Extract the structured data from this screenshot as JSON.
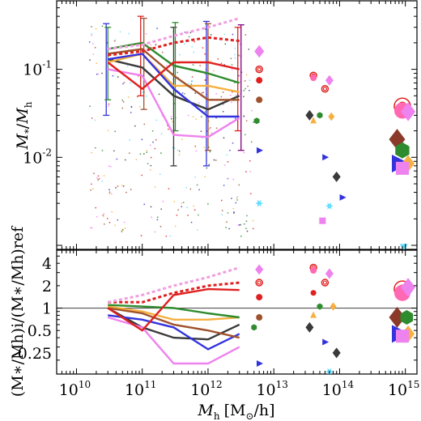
{
  "chart_data": [
    {
      "panel": "top",
      "type": "scatter",
      "ylabel": "M_*/M_h",
      "ylabel_parts": {
        "main": "M",
        "sub1": "*",
        "mid": "/",
        "main2": "M",
        "sub2": "h"
      },
      "xscale": "log",
      "yscale": "log",
      "xlim": [
        5000000000.0,
        1500000000000000.0
      ],
      "ylim": [
        0.0009,
        0.6
      ],
      "y_ticks": [
        {
          "value": 0.1,
          "base": "10",
          "exp": "-1"
        },
        {
          "value": 0.01,
          "base": "10",
          "exp": "-2"
        }
      ],
      "lines": [
        {
          "color": "#3a3a3a",
          "x": [
            30000000000.0,
            100000000000.0,
            300000000000.0,
            1000000000000.0,
            3000000000000.0
          ],
          "y": [
            0.13,
            0.105,
            0.05,
            0.035,
            0.05
          ]
        },
        {
          "color": "#f5b041",
          "x": [
            30000000000.0,
            100000000000.0,
            300000000000.0,
            1000000000000.0,
            3000000000000.0
          ],
          "y": [
            0.12,
            0.15,
            0.065,
            0.065,
            0.055
          ]
        },
        {
          "color": "#3333dd",
          "x": [
            30000000000.0,
            100000000000.0,
            300000000000.0,
            1000000000000.0,
            3000000000000.0
          ],
          "y": [
            0.13,
            0.15,
            0.06,
            0.029,
            0.029
          ]
        },
        {
          "color": "#2e8b2e",
          "x": [
            30000000000.0,
            100000000000.0,
            300000000000.0,
            1000000000000.0,
            3000000000000.0
          ],
          "y": [
            0.17,
            0.2,
            0.11,
            0.09,
            0.07
          ]
        },
        {
          "color": "#a0522d",
          "x": [
            30000000000.0,
            100000000000.0,
            300000000000.0,
            1000000000000.0,
            3000000000000.0
          ],
          "y": [
            0.15,
            0.17,
            0.085,
            0.045,
            0.045
          ]
        },
        {
          "color": "#ee82ee",
          "x": [
            30000000000.0,
            100000000000.0,
            300000000000.0,
            1000000000000.0,
            3000000000000.0
          ],
          "y": [
            0.1,
            0.085,
            0.018,
            0.017,
            0.028
          ]
        },
        {
          "color": "#e02020",
          "x": [
            30000000000.0,
            100000000000.0,
            300000000000.0,
            1000000000000.0,
            3000000000000.0
          ],
          "y": [
            0.12,
            0.06,
            0.12,
            0.12,
            0.1
          ]
        },
        {
          "color": "#e02020",
          "dashed": true,
          "x": [
            30000000000.0,
            100000000000.0,
            300000000000.0,
            1000000000000.0,
            3000000000000.0
          ],
          "y": [
            0.145,
            0.16,
            0.2,
            0.23,
            0.21
          ]
        },
        {
          "color": "#f0a0e0",
          "dashed": true,
          "x": [
            30000000000.0,
            100000000000.0,
            300000000000.0,
            1000000000000.0,
            3000000000000.0
          ],
          "y": [
            0.17,
            0.19,
            0.24,
            0.3,
            0.38
          ]
        }
      ],
      "error_bars": [
        {
          "color": "#3333dd",
          "x": 30000000000.0,
          "lo": 0.03,
          "hi": 0.33
        },
        {
          "color": "#2e8b2e",
          "x": 30000000000.0,
          "lo": 0.045,
          "hi": 0.3
        },
        {
          "color": "#a0522d",
          "x": 100000000000.0,
          "lo": 0.035,
          "hi": 0.38
        },
        {
          "color": "#e02020",
          "x": 100000000000.0,
          "lo": 0.05,
          "hi": 0.4
        },
        {
          "color": "#3a3a3a",
          "x": 300000000000.0,
          "lo": 0.008,
          "hi": 0.3
        },
        {
          "color": "#2e8b2e",
          "x": 300000000000.0,
          "lo": 0.02,
          "hi": 0.34
        },
        {
          "color": "#3333dd",
          "x": 1000000000000.0,
          "lo": 0.008,
          "hi": 0.35
        },
        {
          "color": "#a0522d",
          "x": 1000000000000.0,
          "lo": 0.012,
          "hi": 0.33
        },
        {
          "color": "#800080",
          "x": 3000000000000.0,
          "lo": 0.012,
          "hi": 0.32
        },
        {
          "color": "#e02020",
          "x": 3000000000000.0,
          "lo": 0.02,
          "hi": 0.3
        }
      ],
      "markers": [
        {
          "shape": "diamond",
          "color": "#ee82ee",
          "x": 6000000000000.0,
          "y": 0.16,
          "size": 6
        },
        {
          "shape": "ring",
          "color": "#e02020",
          "x": 6000000000000.0,
          "y": 0.1,
          "size": 4
        },
        {
          "shape": "circle",
          "color": "#e02020",
          "x": 6000000000000.0,
          "y": 0.075,
          "size": 4
        },
        {
          "shape": "circle",
          "color": "#a0522d",
          "x": 6000000000000.0,
          "y": 0.045,
          "size": 4
        },
        {
          "shape": "hexagon",
          "color": "#2e8b2e",
          "x": 5500000000000.0,
          "y": 0.026,
          "size": 4
        },
        {
          "shape": "triangle-right",
          "color": "#3333dd",
          "x": 6000000000000.0,
          "y": 0.012,
          "size": 4
        },
        {
          "shape": "star",
          "color": "#66ddff",
          "x": 6000000000000.0,
          "y": 0.003,
          "size": 5
        },
        {
          "shape": "ring",
          "color": "#e02020",
          "x": 40000000000000.0,
          "y": 0.085,
          "size": 4
        },
        {
          "shape": "circle",
          "color": "#ff69b4",
          "x": 40000000000000.0,
          "y": 0.08,
          "size": 4
        },
        {
          "shape": "diamond",
          "color": "#ee82ee",
          "x": 70000000000000.0,
          "y": 0.075,
          "size": 5
        },
        {
          "shape": "ring",
          "color": "#e02020",
          "x": 60000000000000.0,
          "y": 0.06,
          "size": 4
        },
        {
          "shape": "diamond",
          "color": "#3a3a3a",
          "x": 35000000000000.0,
          "y": 0.03,
          "size": 5
        },
        {
          "shape": "hexagon",
          "color": "#2e8b2e",
          "x": 50000000000000.0,
          "y": 0.03,
          "size": 4
        },
        {
          "shape": "diamond",
          "color": "#f5b041",
          "x": 75000000000000.0,
          "y": 0.029,
          "size": 4
        },
        {
          "shape": "triangle",
          "color": "#f5b041",
          "x": 40000000000000.0,
          "y": 0.026,
          "size": 4
        },
        {
          "shape": "triangle-right",
          "color": "#3333dd",
          "x": 60000000000000.0,
          "y": 0.01,
          "size": 4
        },
        {
          "shape": "diamond",
          "color": "#3a3a3a",
          "x": 90000000000000.0,
          "y": 0.006,
          "size": 5
        },
        {
          "shape": "star",
          "color": "#66ddff",
          "x": 70000000000000.0,
          "y": 0.0028,
          "size": 5
        },
        {
          "shape": "square",
          "color": "#ee82ee",
          "x": 55000000000000.0,
          "y": 0.0019,
          "size": 4
        },
        {
          "shape": "triangle-right",
          "color": "#3333dd",
          "x": 110000000000000.0,
          "y": 0.0035,
          "size": 4
        },
        {
          "shape": "ring",
          "color": "#e02020",
          "x": 900000000000000.0,
          "y": 0.038,
          "size": 10
        },
        {
          "shape": "circle",
          "color": "#ff69b4",
          "x": 900000000000000.0,
          "y": 0.034,
          "size": 10
        },
        {
          "shape": "diamond",
          "color": "#ee82ee",
          "x": 1100000000000000.0,
          "y": 0.033,
          "size": 9
        },
        {
          "shape": "diamond",
          "color": "#8b3a2a",
          "x": 750000000000000.0,
          "y": 0.016,
          "size": 10
        },
        {
          "shape": "hexagon",
          "color": "#2e8b2e",
          "x": 900000000000000.0,
          "y": 0.012,
          "size": 10
        },
        {
          "shape": "triangle-right",
          "color": "#3333dd",
          "x": 800000000000000.0,
          "y": 0.0085,
          "size": 11
        },
        {
          "shape": "diamond",
          "color": "#f5b041",
          "x": 1100000000000000.0,
          "y": 0.0085,
          "size": 8
        },
        {
          "shape": "square",
          "color": "#ee82ee",
          "x": 900000000000000.0,
          "y": 0.0075,
          "size": 8
        },
        {
          "shape": "triangle-down",
          "color": "#66ddff",
          "x": 950000000000000.0,
          "y": 0.00095,
          "size": 5
        }
      ]
    },
    {
      "panel": "bottom",
      "type": "line",
      "xlabel": "M_h [M_⊙/h]",
      "xlabel_parts": {
        "main": "M",
        "sub": "h",
        "units_open": "[M",
        "units_sub": "⊙",
        "units_close": "/h]"
      },
      "ylabel": "(M_*/M_h)_i/(M_*/M_h)_ref",
      "ylabel_text": "(M∗/Mh)i/(M∗/Mh)ref",
      "xscale": "log",
      "yscale": "log",
      "xlim": [
        5000000000.0,
        1500000000000000.0
      ],
      "ylim": [
        0.13,
        6
      ],
      "y_tick_labels": [
        {
          "value": 4,
          "label": "4"
        },
        {
          "value": 2,
          "label": "2"
        },
        {
          "value": 1,
          "label": "1"
        },
        {
          "value": 0.5,
          "label": "0.5"
        },
        {
          "value": 0.25,
          "label": "0.25"
        }
      ],
      "x_tick_labels": [
        {
          "value": 10000000000.0,
          "base": "10",
          "exp": "10"
        },
        {
          "value": 100000000000.0,
          "base": "10",
          "exp": "11"
        },
        {
          "value": 1000000000000.0,
          "base": "10",
          "exp": "12"
        },
        {
          "value": 10000000000000.0,
          "base": "10",
          "exp": "13"
        },
        {
          "value": 100000000000000.0,
          "base": "10",
          "exp": "14"
        },
        {
          "value": 1000000000000000.0,
          "base": "10",
          "exp": "15"
        }
      ],
      "reference_line": 1,
      "lines": [
        {
          "color": "#3a3a3a",
          "x": [
            30000000000.0,
            100000000000.0,
            300000000000.0,
            1000000000000.0,
            3000000000000.0
          ],
          "y": [
            1.0,
            0.55,
            0.4,
            0.38,
            0.6
          ]
        },
        {
          "color": "#f5b041",
          "x": [
            30000000000.0,
            100000000000.0,
            300000000000.0,
            1000000000000.0,
            3000000000000.0
          ],
          "y": [
            1.05,
            0.9,
            0.7,
            0.7,
            0.75
          ]
        },
        {
          "color": "#3333dd",
          "x": [
            30000000000.0,
            100000000000.0,
            300000000000.0,
            1000000000000.0,
            3000000000000.0
          ],
          "y": [
            0.8,
            0.7,
            0.55,
            0.28,
            0.45
          ]
        },
        {
          "color": "#2e8b2e",
          "x": [
            30000000000.0,
            100000000000.0,
            300000000000.0,
            1000000000000.0,
            3000000000000.0
          ],
          "y": [
            1.1,
            1.05,
            1.0,
            0.85,
            0.75
          ]
        },
        {
          "color": "#a0522d",
          "x": [
            30000000000.0,
            100000000000.0,
            300000000000.0,
            1000000000000.0,
            3000000000000.0
          ],
          "y": [
            1.0,
            0.85,
            0.6,
            0.5,
            0.4
          ]
        },
        {
          "color": "#ee82ee",
          "x": [
            30000000000.0,
            100000000000.0,
            300000000000.0,
            1000000000000.0,
            3000000000000.0
          ],
          "y": [
            0.75,
            0.55,
            0.18,
            0.18,
            0.3
          ]
        },
        {
          "color": "#e02020",
          "x": [
            30000000000.0,
            100000000000.0,
            300000000000.0,
            1000000000000.0,
            3000000000000.0
          ],
          "y": [
            1.0,
            0.5,
            1.5,
            1.8,
            1.75
          ]
        },
        {
          "color": "#e02020",
          "dashed": true,
          "x": [
            30000000000.0,
            100000000000.0,
            300000000000.0,
            1000000000000.0,
            3000000000000.0
          ],
          "y": [
            1.2,
            1.2,
            1.6,
            2.0,
            2.2
          ]
        },
        {
          "color": "#f0a0e0",
          "dashed": true,
          "x": [
            30000000000.0,
            100000000000.0,
            300000000000.0,
            1000000000000.0,
            3000000000000.0
          ],
          "y": [
            1.2,
            1.5,
            2.0,
            2.6,
            3.5
          ]
        }
      ],
      "markers": [
        {
          "shape": "diamond",
          "color": "#ee82ee",
          "x": 6000000000000.0,
          "y": 3.3,
          "size": 5
        },
        {
          "shape": "ring",
          "color": "#e02020",
          "x": 6000000000000.0,
          "y": 2.2,
          "size": 4
        },
        {
          "shape": "circle",
          "color": "#e02020",
          "x": 6000000000000.0,
          "y": 1.4,
          "size": 4
        },
        {
          "shape": "circle",
          "color": "#a0522d",
          "x": 6000000000000.0,
          "y": 0.75,
          "size": 4
        },
        {
          "shape": "hexagon",
          "color": "#2e8b2e",
          "x": 5000000000000.0,
          "y": 0.55,
          "size": 4
        },
        {
          "shape": "triangle-right",
          "color": "#3333dd",
          "x": 6000000000000.0,
          "y": 0.18,
          "size": 4
        },
        {
          "shape": "ring",
          "color": "#e02020",
          "x": 40000000000000.0,
          "y": 3.5,
          "size": 4
        },
        {
          "shape": "circle",
          "color": "#ff69b4",
          "x": 40000000000000.0,
          "y": 3.2,
          "size": 4
        },
        {
          "shape": "diamond",
          "color": "#ee82ee",
          "x": 70000000000000.0,
          "y": 2.9,
          "size": 5
        },
        {
          "shape": "ring",
          "color": "#e02020",
          "x": 60000000000000.0,
          "y": 2.2,
          "size": 4
        },
        {
          "shape": "circle",
          "color": "#e02020",
          "x": 40000000000000.0,
          "y": 1.6,
          "size": 3.5
        },
        {
          "shape": "diamond",
          "color": "#f5b041",
          "x": 80000000000000.0,
          "y": 1.05,
          "size": 4
        },
        {
          "shape": "hexagon",
          "color": "#2e8b2e",
          "x": 50000000000000.0,
          "y": 1.05,
          "size": 4
        },
        {
          "shape": "triangle",
          "color": "#f5b041",
          "x": 40000000000000.0,
          "y": 0.8,
          "size": 4
        },
        {
          "shape": "triangle-right",
          "color": "#3333dd",
          "x": 60000000000000.0,
          "y": 0.35,
          "size": 4
        },
        {
          "shape": "diamond",
          "color": "#3a3a3a",
          "x": 35000000000000.0,
          "y": 0.55,
          "size": 5
        },
        {
          "shape": "diamond",
          "color": "#3a3a3a",
          "x": 90000000000000.0,
          "y": 0.25,
          "size": 5
        },
        {
          "shape": "star",
          "color": "#66ddff",
          "x": 70000000000000.0,
          "y": 0.14,
          "size": 5
        },
        {
          "shape": "ring",
          "color": "#e02020",
          "x": 900000000000000.0,
          "y": 1.8,
          "size": 10
        },
        {
          "shape": "circle",
          "color": "#ff69b4",
          "x": 900000000000000.0,
          "y": 1.6,
          "size": 10
        },
        {
          "shape": "diamond",
          "color": "#ee82ee",
          "x": 1100000000000000.0,
          "y": 1.9,
          "size": 9
        },
        {
          "shape": "diamond",
          "color": "#8b3a2a",
          "x": 750000000000000.0,
          "y": 0.75,
          "size": 10
        },
        {
          "shape": "hexagon",
          "color": "#2e8b2e",
          "x": 1050000000000000.0,
          "y": 0.75,
          "size": 9
        },
        {
          "shape": "triangle-right",
          "color": "#3333dd",
          "x": 800000000000000.0,
          "y": 0.45,
          "size": 11
        },
        {
          "shape": "diamond",
          "color": "#f5b041",
          "x": 1100000000000000.0,
          "y": 0.45,
          "size": 8
        },
        {
          "shape": "square",
          "color": "#ee82ee",
          "x": 900000000000000.0,
          "y": 0.42,
          "size": 8
        }
      ]
    }
  ]
}
